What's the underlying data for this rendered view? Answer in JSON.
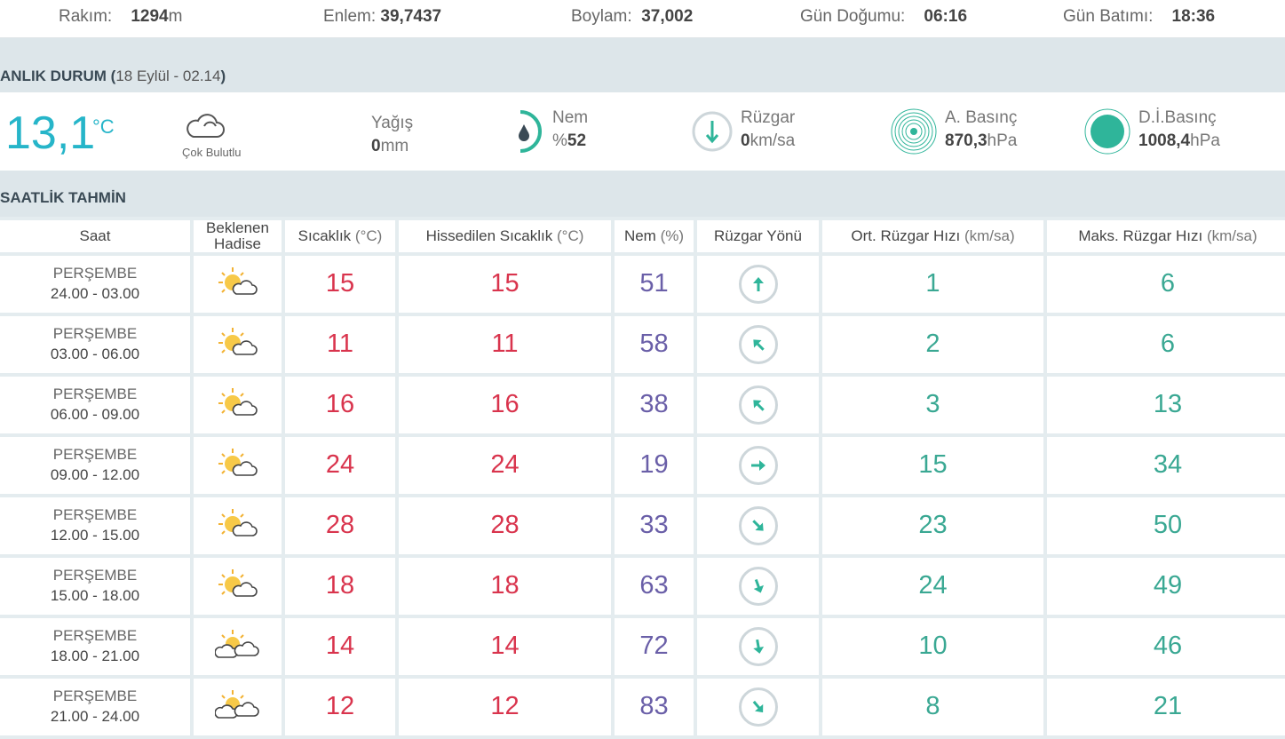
{
  "topbar": {
    "rakim_label": "Rakım:",
    "rakim_value": "1294",
    "rakim_unit": "m",
    "enlem_label": "Enlem:",
    "enlem_value": "39,7437",
    "boylam_label": "Boylam:",
    "boylam_value": "37,002",
    "gun_dogumu_label": "Gün Doğumu:",
    "gun_dogumu_value": "06:16",
    "gun_batimi_label": "Gün Batımı:",
    "gun_batimi_value": "18:36"
  },
  "current": {
    "title": "ANLIK DURUM (",
    "subtitle": "18 Eylül - 02.14",
    "title_close": ")",
    "temperature": "13,1",
    "temperature_unit": "°C",
    "condition": "Çok Bulutlu",
    "yagis_label": "Yağış",
    "yagis_value": "0",
    "yagis_unit": "mm",
    "nem_label": "Nem",
    "nem_prefix": "%",
    "nem_value": "52",
    "ruzgar_label": "Rüzgar",
    "ruzgar_value": "0",
    "ruzgar_unit": "km/sa",
    "a_basinc_label": "A. Basınç",
    "a_basinc_value": "870,3",
    "a_basinc_unit": "hPa",
    "di_basinc_label": "D.İ.Basınç",
    "di_basinc_value": "1008,4",
    "di_basinc_unit": "hPa",
    "accent_color": "#26b5c9",
    "gauge_color": "#2fb59a"
  },
  "hourly": {
    "title": "SAATLİK TAHMİN",
    "headers": {
      "saat": "Saat",
      "hadise_1": "Beklenen",
      "hadise_2": "Hadise",
      "sicaklik": "Sıcaklık",
      "sicaklik_unit": "(°C)",
      "hissedilen": "Hissedilen Sıcaklık",
      "hissedilen_unit": "(°C)",
      "nem": "Nem",
      "nem_unit": "(%)",
      "ruzgar_yonu": "Rüzgar Yönü",
      "ort_ruzgar": "Ort. Rüzgar Hızı",
      "ort_ruzgar_unit": "(km/sa)",
      "maks_ruzgar": "Maks. Rüzgar Hızı",
      "maks_ruzgar_unit": "(km/sa)"
    },
    "rows": [
      {
        "day": "PERŞEMBE",
        "time": "24.00 - 03.00",
        "icon": "partly-cloudy-icon",
        "temp": "15",
        "feels": "15",
        "humidity": "51",
        "wind_dir": 0,
        "avg_wind": "1",
        "max_wind": "6"
      },
      {
        "day": "PERŞEMBE",
        "time": "03.00 - 06.00",
        "icon": "partly-cloudy-icon",
        "temp": "11",
        "feels": "11",
        "humidity": "58",
        "wind_dir": 315,
        "avg_wind": "2",
        "max_wind": "6"
      },
      {
        "day": "PERŞEMBE",
        "time": "06.00 - 09.00",
        "icon": "partly-cloudy-icon",
        "temp": "16",
        "feels": "16",
        "humidity": "38",
        "wind_dir": 315,
        "avg_wind": "3",
        "max_wind": "13"
      },
      {
        "day": "PERŞEMBE",
        "time": "09.00 - 12.00",
        "icon": "partly-cloudy-icon",
        "temp": "24",
        "feels": "24",
        "humidity": "19",
        "wind_dir": 90,
        "avg_wind": "15",
        "max_wind": "34"
      },
      {
        "day": "PERŞEMBE",
        "time": "12.00 - 15.00",
        "icon": "partly-cloudy-icon",
        "temp": "28",
        "feels": "28",
        "humidity": "33",
        "wind_dir": 135,
        "avg_wind": "23",
        "max_wind": "50"
      },
      {
        "day": "PERŞEMBE",
        "time": "15.00 - 18.00",
        "icon": "partly-cloudy-icon",
        "temp": "18",
        "feels": "18",
        "humidity": "63",
        "wind_dir": 160,
        "avg_wind": "24",
        "max_wind": "49"
      },
      {
        "day": "PERŞEMBE",
        "time": "18.00 - 21.00",
        "icon": "mostly-cloudy-icon",
        "temp": "14",
        "feels": "14",
        "humidity": "72",
        "wind_dir": 170,
        "avg_wind": "10",
        "max_wind": "46"
      },
      {
        "day": "PERŞEMBE",
        "time": "21.00 - 24.00",
        "icon": "mostly-cloudy-icon",
        "temp": "12",
        "feels": "12",
        "humidity": "83",
        "wind_dir": 140,
        "avg_wind": "8",
        "max_wind": "21"
      }
    ],
    "colors": {
      "temp": "#d9344d",
      "humidity": "#6a5fa8",
      "wind": "#3aa893"
    }
  }
}
